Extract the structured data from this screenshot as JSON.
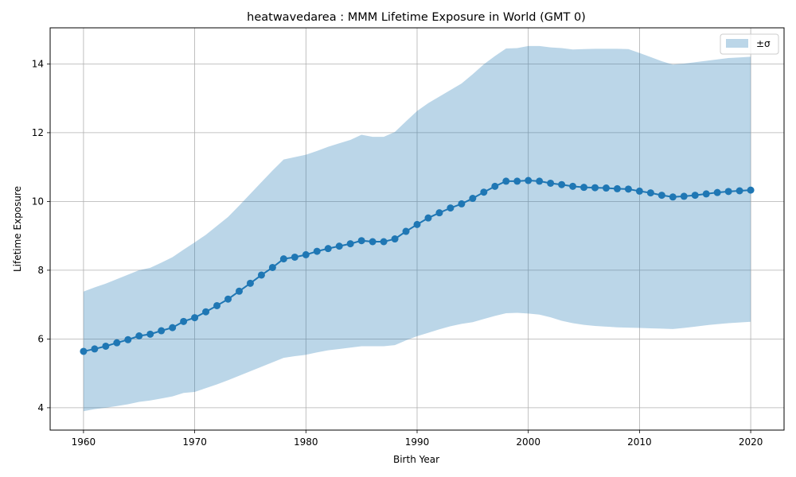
{
  "chart_data": {
    "type": "line",
    "title": "heatwavedarea : MMM Lifetime Exposure in World (GMT 0)",
    "xlabel": "Birth Year",
    "ylabel": "Lifetime Exposure",
    "xlim": [
      1957,
      2023
    ],
    "ylim": [
      3.35,
      15.05
    ],
    "xticks": [
      1960,
      1970,
      1980,
      1990,
      2000,
      2010,
      2020
    ],
    "yticks": [
      4,
      6,
      8,
      10,
      12,
      14
    ],
    "grid": true,
    "legend": {
      "placement": "top-right",
      "entries": [
        "±σ"
      ]
    },
    "colors": {
      "line": "#1f77b4",
      "band": "#1f77b4"
    },
    "x": [
      1960,
      1961,
      1962,
      1963,
      1964,
      1965,
      1966,
      1967,
      1968,
      1969,
      1970,
      1971,
      1972,
      1973,
      1974,
      1975,
      1976,
      1977,
      1978,
      1979,
      1980,
      1981,
      1982,
      1983,
      1984,
      1985,
      1986,
      1987,
      1988,
      1989,
      1990,
      1991,
      1992,
      1993,
      1994,
      1995,
      1996,
      1997,
      1998,
      1999,
      2000,
      2001,
      2002,
      2003,
      2004,
      2005,
      2006,
      2007,
      2008,
      2009,
      2010,
      2011,
      2012,
      2013,
      2014,
      2015,
      2016,
      2017,
      2018,
      2019,
      2020
    ],
    "series": [
      {
        "values": [
          5.64,
          5.71,
          5.79,
          5.89,
          5.98,
          6.09,
          6.14,
          6.24,
          6.33,
          6.51,
          6.62,
          6.79,
          6.97,
          7.16,
          7.39,
          7.62,
          7.86,
          8.08,
          8.33,
          8.38,
          8.45,
          8.55,
          8.63,
          8.7,
          8.77,
          8.86,
          8.83,
          8.83,
          8.91,
          9.13,
          9.33,
          9.52,
          9.67,
          9.81,
          9.93,
          10.09,
          10.27,
          10.44,
          10.59,
          10.59,
          10.61,
          10.59,
          10.53,
          10.49,
          10.44,
          10.41,
          10.4,
          10.39,
          10.37,
          10.36,
          10.3,
          10.25,
          10.18,
          10.13,
          10.15,
          10.18,
          10.22,
          10.26,
          10.29,
          10.31,
          10.33
        ]
      }
    ],
    "band": {
      "name": "±σ",
      "upper": [
        7.38,
        7.5,
        7.61,
        7.74,
        7.87,
        8.0,
        8.07,
        8.22,
        8.38,
        8.6,
        8.81,
        9.03,
        9.29,
        9.55,
        9.88,
        10.22,
        10.56,
        10.9,
        11.22,
        11.29,
        11.36,
        11.47,
        11.59,
        11.69,
        11.79,
        11.94,
        11.88,
        11.88,
        12.02,
        12.33,
        12.63,
        12.86,
        13.05,
        13.24,
        13.43,
        13.7,
        13.99,
        14.23,
        14.45,
        14.46,
        14.52,
        14.52,
        14.48,
        14.46,
        14.42,
        14.43,
        14.44,
        14.44,
        14.44,
        14.43,
        14.32,
        14.2,
        14.08,
        13.98,
        14.01,
        14.05,
        14.09,
        14.13,
        14.17,
        14.19,
        14.21
      ],
      "lower": [
        3.9,
        3.96,
        4.0,
        4.05,
        4.1,
        4.17,
        4.21,
        4.27,
        4.33,
        4.43,
        4.46,
        4.57,
        4.68,
        4.8,
        4.93,
        5.06,
        5.19,
        5.32,
        5.45,
        5.5,
        5.54,
        5.61,
        5.67,
        5.71,
        5.75,
        5.79,
        5.79,
        5.79,
        5.82,
        5.96,
        6.08,
        6.18,
        6.28,
        6.37,
        6.44,
        6.49,
        6.58,
        6.67,
        6.75,
        6.76,
        6.74,
        6.71,
        6.63,
        6.53,
        6.46,
        6.41,
        6.38,
        6.36,
        6.34,
        6.33,
        6.32,
        6.31,
        6.3,
        6.29,
        6.32,
        6.36,
        6.4,
        6.43,
        6.46,
        6.48,
        6.5
      ]
    }
  }
}
